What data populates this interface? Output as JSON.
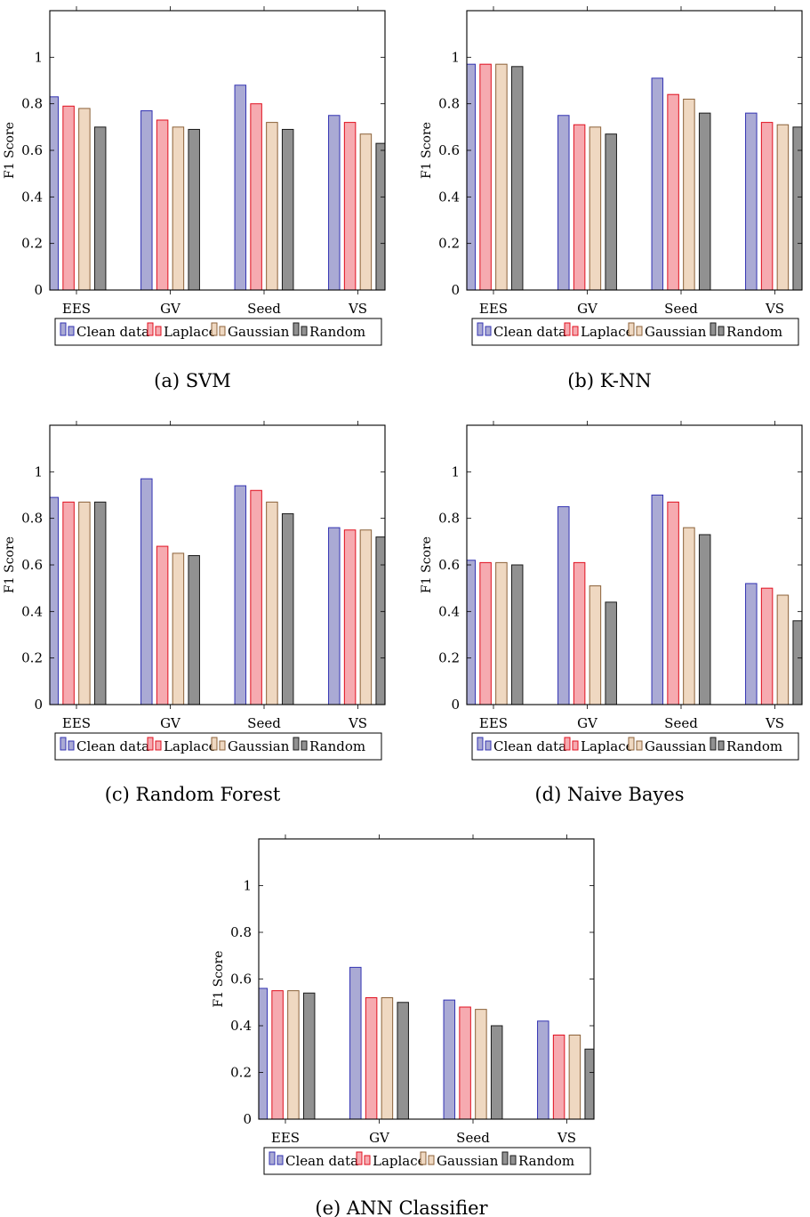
{
  "chart_data": [
    {
      "type": "bar",
      "caption": "(a)  SVM",
      "ylabel": "F1 Score",
      "categories": [
        "EES",
        "GV",
        "Seed",
        "VS"
      ],
      "yticks": [
        "0",
        "0.2",
        "0.4",
        "0.6",
        "0.8",
        "1"
      ],
      "ylim": [
        0,
        1.2
      ],
      "series": [
        {
          "name": "Clean data",
          "values": [
            0.83,
            0.77,
            0.88,
            0.75
          ]
        },
        {
          "name": "Laplace",
          "values": [
            0.79,
            0.73,
            0.8,
            0.72
          ]
        },
        {
          "name": "Gaussian",
          "values": [
            0.78,
            0.7,
            0.72,
            0.67
          ]
        },
        {
          "name": "Random",
          "values": [
            0.7,
            0.69,
            0.69,
            0.63
          ]
        }
      ]
    },
    {
      "type": "bar",
      "caption": "(b)  K-NN",
      "ylabel": "F1 Score",
      "categories": [
        "EES",
        "GV",
        "Seed",
        "VS"
      ],
      "yticks": [
        "0",
        "0.2",
        "0.4",
        "0.6",
        "0.8",
        "1"
      ],
      "ylim": [
        0,
        1.2
      ],
      "series": [
        {
          "name": "Clean data",
          "values": [
            0.97,
            0.75,
            0.91,
            0.76
          ]
        },
        {
          "name": "Laplace",
          "values": [
            0.97,
            0.71,
            0.84,
            0.72
          ]
        },
        {
          "name": "Gaussian",
          "values": [
            0.97,
            0.7,
            0.82,
            0.71
          ]
        },
        {
          "name": "Random",
          "values": [
            0.96,
            0.67,
            0.76,
            0.7
          ]
        }
      ]
    },
    {
      "type": "bar",
      "caption": "(c)  Random Forest",
      "ylabel": "F1 Score",
      "categories": [
        "EES",
        "GV",
        "Seed",
        "VS"
      ],
      "yticks": [
        "0",
        "0.2",
        "0.4",
        "0.6",
        "0.8",
        "1"
      ],
      "ylim": [
        0,
        1.2
      ],
      "series": [
        {
          "name": "Clean data",
          "values": [
            0.89,
            0.97,
            0.94,
            0.76
          ]
        },
        {
          "name": "Laplace",
          "values": [
            0.87,
            0.68,
            0.92,
            0.75
          ]
        },
        {
          "name": "Gaussian",
          "values": [
            0.87,
            0.65,
            0.87,
            0.75
          ]
        },
        {
          "name": "Random",
          "values": [
            0.87,
            0.64,
            0.82,
            0.72
          ]
        }
      ]
    },
    {
      "type": "bar",
      "caption": "(d)  Naive Bayes",
      "ylabel": "F1 Score",
      "categories": [
        "EES",
        "GV",
        "Seed",
        "VS"
      ],
      "yticks": [
        "0",
        "0.2",
        "0.4",
        "0.6",
        "0.8",
        "1"
      ],
      "ylim": [
        0,
        1.2
      ],
      "series": [
        {
          "name": "Clean data",
          "values": [
            0.62,
            0.85,
            0.9,
            0.52
          ]
        },
        {
          "name": "Laplace",
          "values": [
            0.61,
            0.61,
            0.87,
            0.5
          ]
        },
        {
          "name": "Gaussian",
          "values": [
            0.61,
            0.51,
            0.76,
            0.47
          ]
        },
        {
          "name": "Random",
          "values": [
            0.6,
            0.44,
            0.73,
            0.36
          ]
        }
      ]
    },
    {
      "type": "bar",
      "caption": "(e)  ANN Classifier",
      "ylabel": "F1 Score",
      "categories": [
        "EES",
        "GV",
        "Seed",
        "VS"
      ],
      "yticks": [
        "0",
        "0.2",
        "0.4",
        "0.6",
        "0.8",
        "1"
      ],
      "ylim": [
        0,
        1.2
      ],
      "series": [
        {
          "name": "Clean data",
          "values": [
            0.56,
            0.65,
            0.51,
            0.42
          ]
        },
        {
          "name": "Laplace",
          "values": [
            0.55,
            0.52,
            0.48,
            0.36
          ]
        },
        {
          "name": "Gaussian",
          "values": [
            0.55,
            0.52,
            0.47,
            0.36
          ]
        },
        {
          "name": "Random",
          "values": [
            0.54,
            0.5,
            0.4,
            0.3
          ]
        }
      ]
    }
  ],
  "colors": {
    "fills": [
      "#aaaad4",
      "#f6aab0",
      "#efd8c1",
      "#919191"
    ],
    "strokes": [
      "#3333b2",
      "#e0101f",
      "#8c6239",
      "#1a1a1a"
    ]
  }
}
